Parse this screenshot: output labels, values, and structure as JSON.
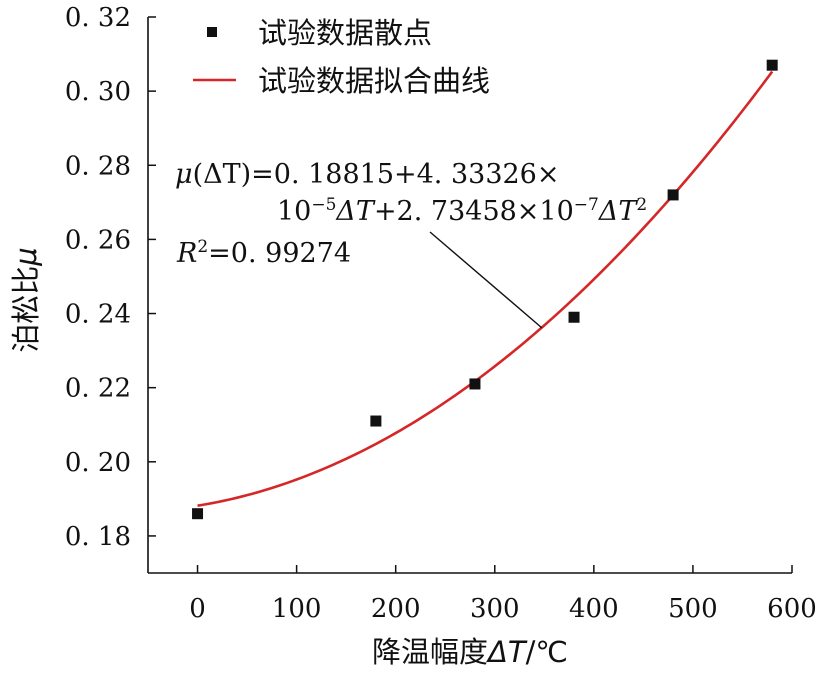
{
  "chart_data": {
    "type": "scatter",
    "x_ticks": [
      "0",
      "100",
      "200",
      "300",
      "400",
      "500",
      "600"
    ],
    "y_ticks": [
      "0.18",
      "0.20",
      "0.22",
      "0.24",
      "0.26",
      "0.28",
      "0.30",
      "0.32"
    ],
    "xlim": [
      -50,
      600
    ],
    "ylim": [
      0.17,
      0.32
    ],
    "xlabel": {
      "text": "降温幅度",
      "var": "ΔT",
      "unit": "/℃"
    },
    "ylabel": {
      "text": "泊松比",
      "var": "μ"
    },
    "series": [
      {
        "name": "试验数据散点",
        "kind": "scatter",
        "color": "#111111",
        "x": [
          0,
          180,
          280,
          380,
          480,
          580
        ],
        "y": [
          0.186,
          0.211,
          0.221,
          0.239,
          0.272,
          0.307
        ]
      },
      {
        "name": "试验数据拟合曲线",
        "kind": "line",
        "color": "#d62728",
        "x_range": [
          0,
          580
        ],
        "coefficients": [
          0.18815,
          4.33326e-05,
          2.73458e-07
        ]
      }
    ],
    "legend_position": "top-left",
    "grid": false,
    "annotation": {
      "line1": {
        "var": "μ",
        "arg": "(ΔT)",
        "expr": "=0. 18815+4. 33326×"
      },
      "line2": {
        "base": "10",
        "exp": "−5",
        "mid": "ΔT",
        "expr": "+2. 73458×10",
        "exp2": "−7",
        "tail": "ΔT",
        "exp3": "2"
      },
      "line3": {
        "var": "R",
        "exp": "2",
        "expr": "=0. 99274"
      }
    }
  }
}
